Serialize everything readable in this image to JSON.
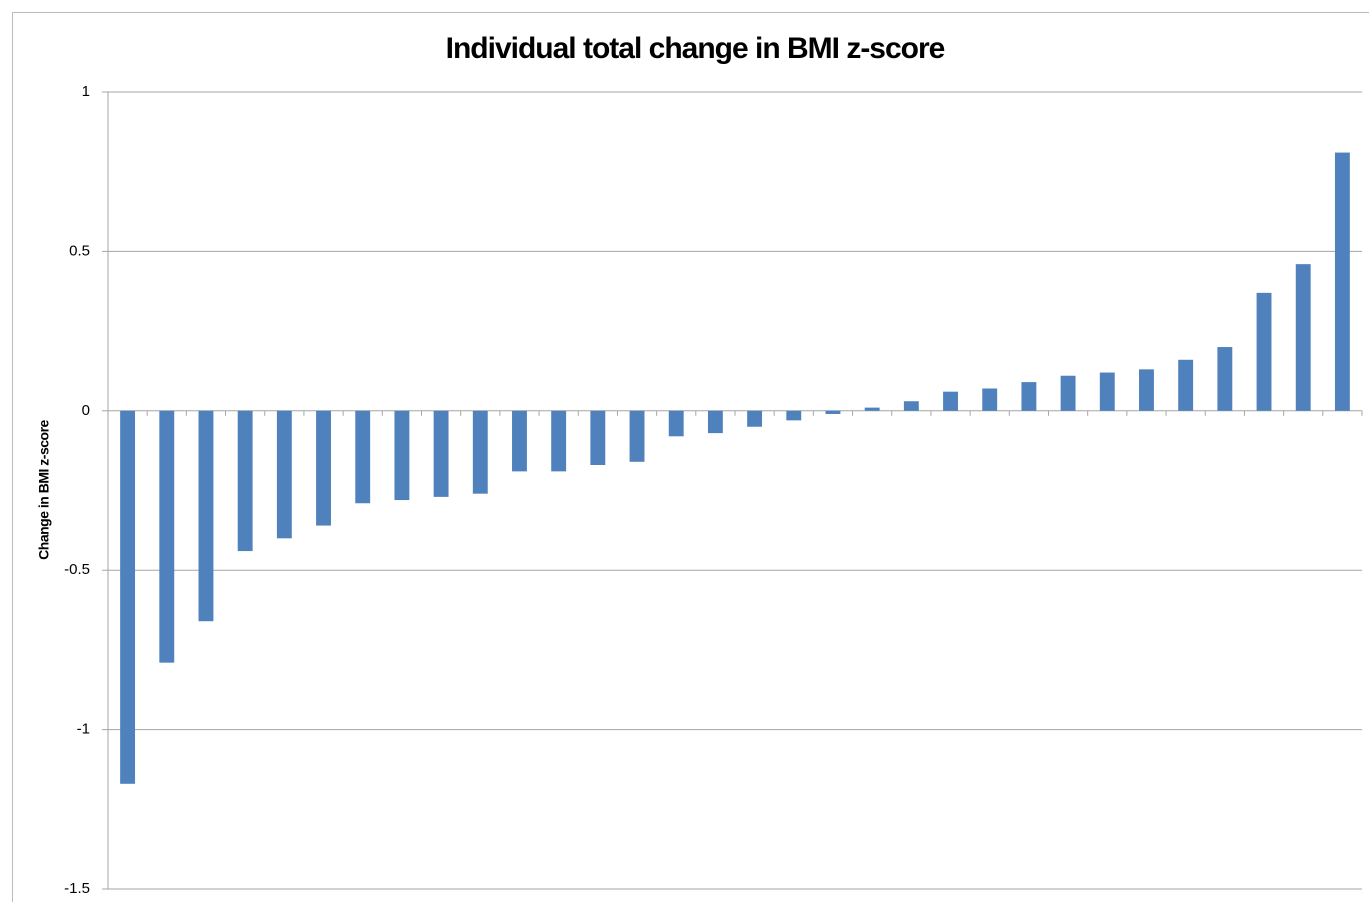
{
  "chart_data": {
    "type": "bar",
    "title": "Individual total change in BMI z-score",
    "y_label": "Change in BMI z-score",
    "values": [
      -1.17,
      -0.79,
      -0.66,
      -0.44,
      -0.4,
      -0.36,
      -0.29,
      -0.28,
      -0.27,
      -0.26,
      -0.19,
      -0.19,
      -0.17,
      -0.16,
      -0.08,
      -0.07,
      -0.05,
      -0.03,
      -0.01,
      0.01,
      0.03,
      0.06,
      0.07,
      0.09,
      0.11,
      0.12,
      0.13,
      0.16,
      0.2,
      0.37,
      0.46,
      0.81
    ],
    "color": "#4f81bd",
    "ylim": [
      -1.5,
      1
    ],
    "yticks": [
      -1.5,
      -1,
      -0.5,
      0,
      0.5,
      1
    ],
    "grid": true
  }
}
